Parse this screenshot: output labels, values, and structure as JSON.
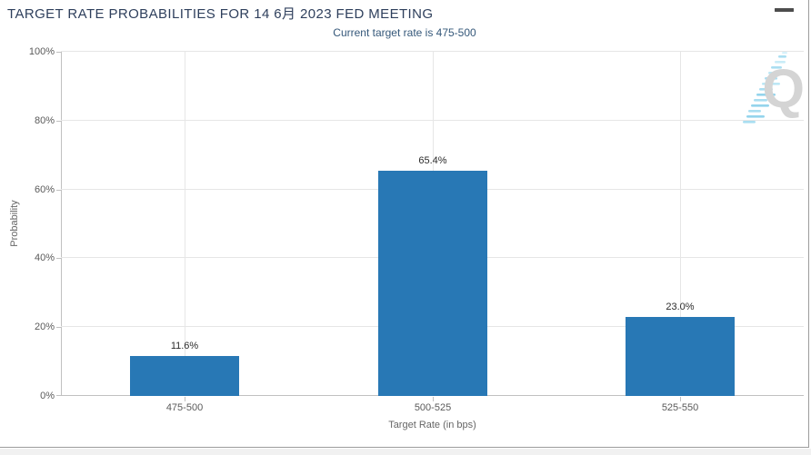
{
  "header": {
    "title": "TARGET RATE PROBABILITIES FOR 14 6月 2023 FED MEETING",
    "menu_icon": "hamburger-icon"
  },
  "watermark": {
    "letter": "Q",
    "name": "quikstrike-logo"
  },
  "colors": {
    "bar": "#2878b5",
    "title_text": "#2e3f5c",
    "subtitle_text": "#35587a",
    "gridline": "#e6e6e6",
    "axis_line": "#c0c0c0",
    "panel_border": "#9c9c9c",
    "footer_strip": "#f1f1f1"
  },
  "chart_data": {
    "type": "bar",
    "title": "TARGET RATE PROBABILITIES FOR 14 6月 2023 FED MEETING",
    "subtitle": "Current target rate is 475-500",
    "categories": [
      "475-500",
      "500-525",
      "525-550"
    ],
    "values": [
      11.6,
      65.4,
      23.0
    ],
    "value_labels": [
      "11.6%",
      "65.4%",
      "23.0%"
    ],
    "xlabel": "Target Rate (in bps)",
    "ylabel": "Probability",
    "ylim": [
      0,
      100
    ],
    "ytick_step": 20,
    "ytick_labels": [
      "0%",
      "20%",
      "40%",
      "60%",
      "80%",
      "100%"
    ],
    "grid": true,
    "legend": "none",
    "bar_color": "#2878b5"
  }
}
